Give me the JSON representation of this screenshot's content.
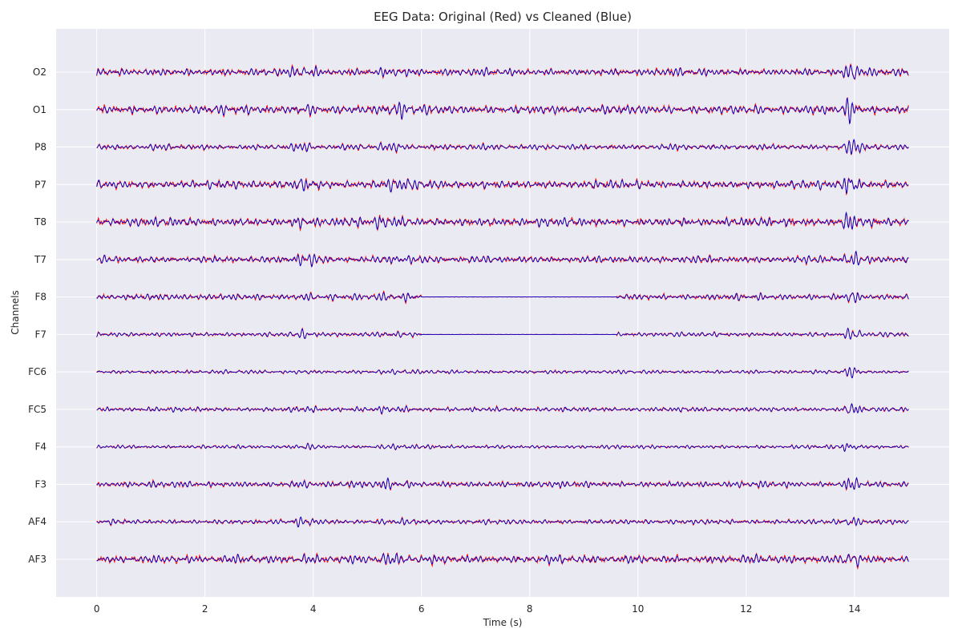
{
  "chart_data": {
    "type": "line",
    "title": "EEG Data: Original (Red) vs Cleaned (Blue)",
    "xlabel": "Time (s)",
    "ylabel": "Channels",
    "xlim": [
      -0.75,
      15.75
    ],
    "xticks": [
      0,
      2,
      4,
      6,
      8,
      10,
      12,
      14
    ],
    "duration_s": 15,
    "grid": true,
    "legend": "none",
    "colors": {
      "original": "#ff0000",
      "cleaned": "#0000cc",
      "plot_bg": "#eaeaf2",
      "grid": "#ffffff"
    },
    "series_names": [
      "Original",
      "Cleaned"
    ],
    "channels": [
      "AF3",
      "AF4",
      "F3",
      "F4",
      "FC5",
      "FC6",
      "F7",
      "F8",
      "T7",
      "T8",
      "P7",
      "P8",
      "O1",
      "O2"
    ],
    "channel_amplitude": {
      "AF3": 1.0,
      "AF4": 0.6,
      "F3": 0.75,
      "F4": 0.45,
      "FC5": 0.55,
      "FC6": 0.45,
      "F7": 0.55,
      "F8": 0.75,
      "T7": 0.85,
      "T8": 1.05,
      "P7": 1.0,
      "P8": 0.7,
      "O1": 1.1,
      "O2": 0.9
    },
    "cleaned_flat_intervals": {
      "F7": [
        6.0,
        9.6
      ],
      "F8": [
        6.0,
        9.6
      ]
    },
    "artifact_windows_s": [
      [
        3.6,
        4.1
      ],
      [
        5.1,
        5.9
      ],
      [
        13.8,
        14.1
      ]
    ]
  }
}
